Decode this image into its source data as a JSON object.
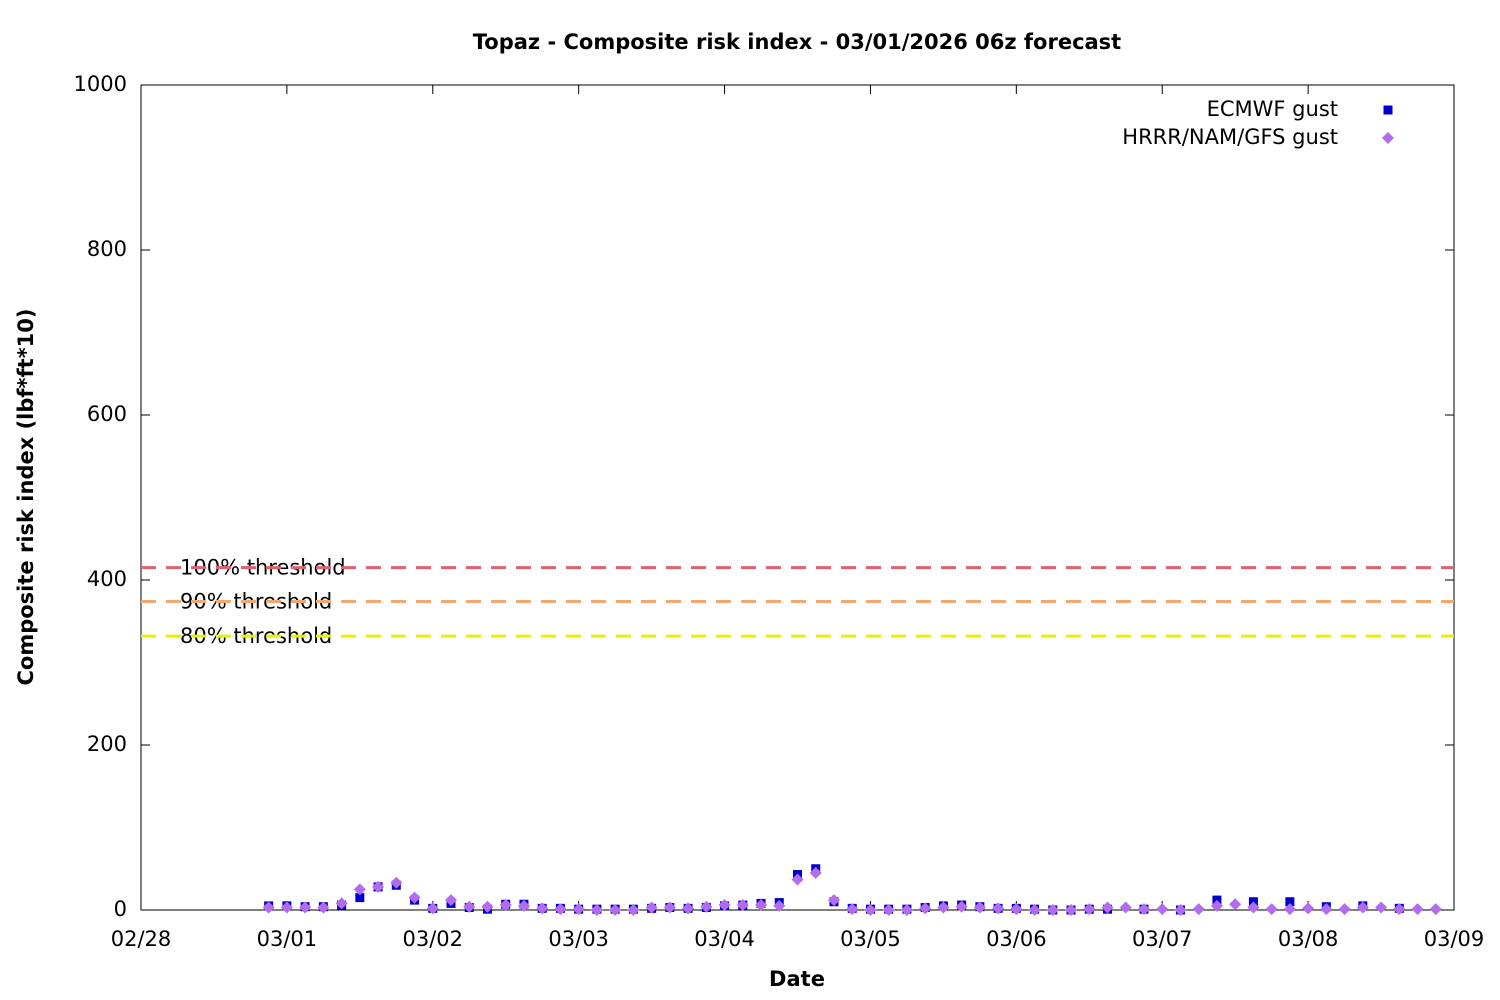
{
  "chart_data": {
    "type": "scatter",
    "title": "Topaz - Composite risk index - 03/01/2026 06z forecast",
    "xlabel": "Date",
    "ylabel": "Composite risk index (lbf*ft*10)",
    "xlim": [
      0,
      9
    ],
    "xticks": [
      {
        "value": 0,
        "label": "02/28"
      },
      {
        "value": 1,
        "label": "03/01"
      },
      {
        "value": 2,
        "label": "03/02"
      },
      {
        "value": 3,
        "label": "03/03"
      },
      {
        "value": 4,
        "label": "03/04"
      },
      {
        "value": 5,
        "label": "03/05"
      },
      {
        "value": 6,
        "label": "03/06"
      },
      {
        "value": 7,
        "label": "03/07"
      },
      {
        "value": 8,
        "label": "03/08"
      },
      {
        "value": 9,
        "label": "03/09"
      }
    ],
    "ylim": [
      0,
      1000
    ],
    "yticks": [
      0,
      200,
      400,
      600,
      800,
      1000
    ],
    "legend": "top-right",
    "x": [
      0.875,
      1,
      1.125,
      1.25,
      1.375,
      1.5,
      1.625,
      1.75,
      1.875,
      2,
      2.125,
      2.25,
      2.375,
      2.5,
      2.625,
      2.75,
      2.875,
      3,
      3.125,
      3.25,
      3.375,
      3.5,
      3.625,
      3.75,
      3.875,
      4,
      4.125,
      4.25,
      4.375,
      4.5,
      4.625,
      4.75,
      4.875,
      5,
      5.125,
      5.25,
      5.375,
      5.5,
      5.625,
      5.75,
      5.875,
      6,
      6.125,
      6.25,
      6.375,
      6.5,
      6.625,
      6.75,
      6.875,
      7,
      7.125,
      7.25,
      7.375,
      7.5,
      7.625,
      7.75,
      7.875,
      8,
      8.125,
      8.25,
      8.375,
      8.5,
      8.625,
      8.75,
      8.875
    ],
    "series": [
      {
        "name": "ECMWF gust",
        "color": "#0000cc",
        "marker": "square",
        "values": [
          5,
          5,
          4,
          4,
          6,
          15,
          28,
          30,
          12,
          2,
          8,
          3,
          1,
          7,
          7,
          2,
          2,
          1,
          1,
          1,
          1,
          2,
          3,
          2,
          3,
          5,
          6,
          8,
          9,
          43,
          50,
          10,
          2,
          1,
          1,
          1,
          3,
          5,
          6,
          4,
          2,
          2,
          1,
          0,
          0,
          1,
          1,
          null,
          1,
          null,
          0,
          null,
          12,
          null,
          10,
          null,
          10,
          null,
          4,
          null,
          5,
          null,
          2,
          null,
          null
        ]
      },
      {
        "name": "HRRR/NAM/GFS gust",
        "color": "#b36cf0",
        "marker": "diamond",
        "values": [
          3,
          3,
          3,
          3,
          8,
          25,
          28,
          33,
          15,
          2,
          12,
          4,
          4,
          6,
          5,
          2,
          1,
          1,
          0,
          0,
          0,
          3,
          3,
          2,
          4,
          6,
          6,
          6,
          5,
          37,
          45,
          12,
          1,
          0,
          0,
          0,
          2,
          3,
          4,
          3,
          2,
          1,
          0,
          0,
          0,
          1,
          3,
          3,
          1,
          1,
          0,
          1,
          5,
          7,
          3,
          1,
          1,
          2,
          1,
          1,
          3,
          3,
          1,
          1,
          1
        ]
      }
    ],
    "thresholds": [
      {
        "label": "100% threshold",
        "value": 415,
        "color": "#e06070"
      },
      {
        "label": "90% threshold",
        "value": 374,
        "color": "#f4a870"
      },
      {
        "label": "80% threshold",
        "value": 332,
        "color": "#eeee00"
      }
    ]
  }
}
